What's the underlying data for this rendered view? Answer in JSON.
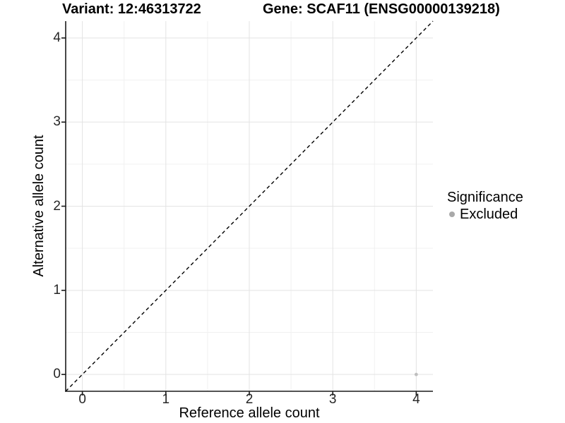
{
  "titles": {
    "variant": "Variant: 12:46313722",
    "gene": "Gene: SCAF11 (ENSG00000139218)"
  },
  "axes": {
    "x": {
      "label": "Reference allele count",
      "ticks": [
        "0",
        "1",
        "2",
        "3",
        "4"
      ]
    },
    "y": {
      "label": "Alternative allele count",
      "ticks": [
        "0",
        "1",
        "2",
        "3",
        "4"
      ]
    }
  },
  "legend": {
    "title": "Significance",
    "items": [
      {
        "label": "Excluded",
        "color": "#a9a9a9",
        "marker": "circle-icon"
      }
    ]
  },
  "chart_data": {
    "type": "scatter",
    "title": "Variant: 12:46313722",
    "subtitle": "Gene: SCAF11 (ENSG00000139218)",
    "xlabel": "Reference allele count",
    "ylabel": "Alternative allele count",
    "xlim": [
      -0.2,
      4.2
    ],
    "ylim": [
      -0.2,
      4.2
    ],
    "x_ticks": [
      0,
      1,
      2,
      3,
      4
    ],
    "y_ticks": [
      0,
      1,
      2,
      3,
      4
    ],
    "minor_ticks": [
      0.5,
      1.5,
      2.5,
      3.5
    ],
    "grid": "major-and-minor",
    "legend_position": "right",
    "series": [
      {
        "name": "Excluded",
        "color": "#bebebe",
        "points": [
          [
            4,
            0
          ]
        ]
      }
    ],
    "reference_line": {
      "type": "identity",
      "slope": 1,
      "intercept": 0,
      "style": "dashed",
      "color": "#000000"
    }
  },
  "colors": {
    "background": "#ffffff",
    "axis_line": "#1a1a1a",
    "grid_major": "#e3e3e3",
    "grid_minor": "#f1f1f1",
    "tick_text": "#262626"
  }
}
